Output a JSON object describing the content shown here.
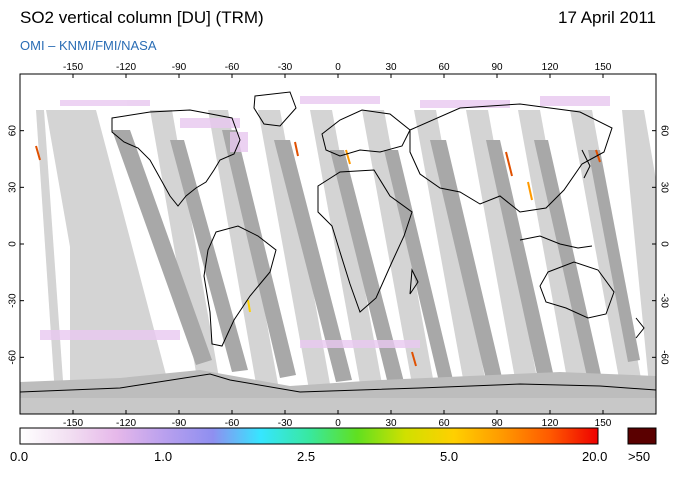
{
  "header": {
    "title": "SO2 vertical column [DU] (TRM)",
    "date": "17 April 2011",
    "credit": "OMI  –  KNMI/FMI/NASA"
  },
  "map": {
    "projection": "equirectangular",
    "lon_ticks": [
      "-150",
      "-120",
      "-90",
      "-60",
      "-30",
      "0",
      "30",
      "60",
      "90",
      "120",
      "150"
    ],
    "lat_ticks": [
      "60",
      "30",
      "0",
      "-30",
      "-60"
    ],
    "colors": {
      "swath_dark": "#a8a8a8",
      "swath_light": "#d4d4d4",
      "antarctic": "#bdbdbd",
      "coast": "#000000"
    }
  },
  "colorbar": {
    "labels": [
      "0.0",
      "1.0",
      "2.5",
      "5.0",
      "20.0",
      ">50"
    ],
    "gradient": [
      "#ffffff",
      "#f2e0f2",
      "#e6b8ea",
      "#b9a0ee",
      "#8f8ff0",
      "#36e6ff",
      "#38e8a0",
      "#60e020",
      "#d0e000",
      "#ffd000",
      "#ff9a00",
      "#ff5a00",
      "#ee0000"
    ],
    "overflow_color": "#5a0000"
  }
}
